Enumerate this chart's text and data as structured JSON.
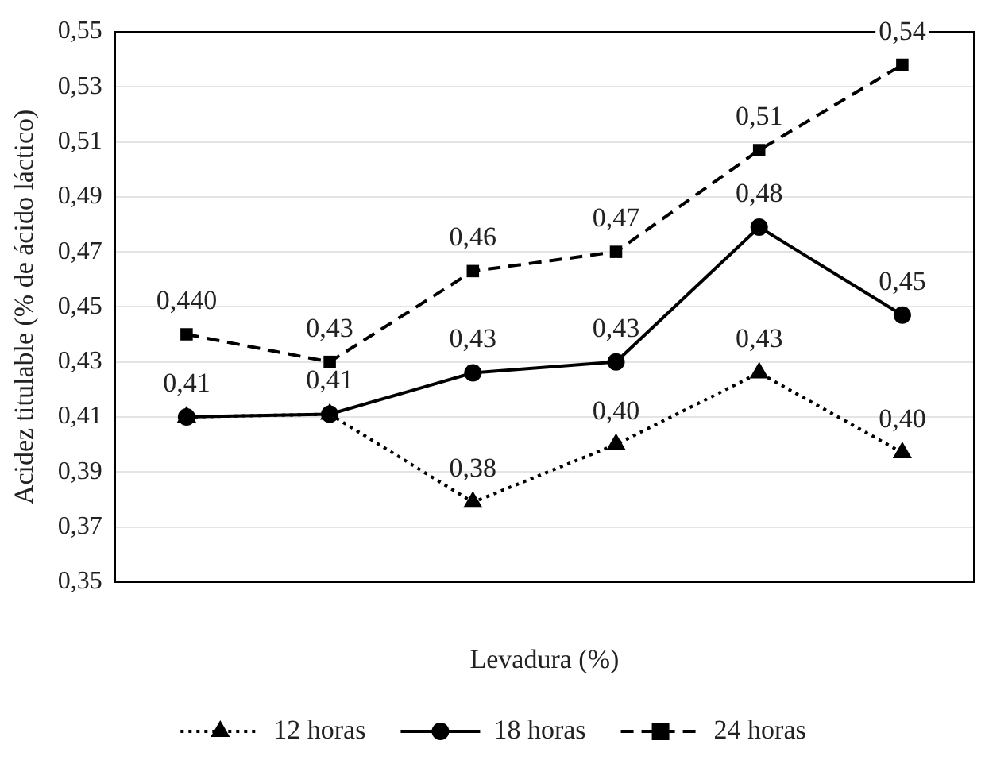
{
  "chart_data": {
    "type": "line",
    "xlabel": "Levadura (%)",
    "ylabel": "Acidez titulable (% de ácido láctico)",
    "categories": [
      null,
      null,
      null,
      null,
      null,
      null
    ],
    "ylim": [
      0.35,
      0.55
    ],
    "yticks": [
      {
        "value": 0.35,
        "label": "0,35"
      },
      {
        "value": 0.37,
        "label": "0,37"
      },
      {
        "value": 0.39,
        "label": "0,39"
      },
      {
        "value": 0.41,
        "label": "0,41"
      },
      {
        "value": 0.43,
        "label": "0,43"
      },
      {
        "value": 0.45,
        "label": "0,45"
      },
      {
        "value": 0.47,
        "label": "0,47"
      },
      {
        "value": 0.49,
        "label": "0,49"
      },
      {
        "value": 0.51,
        "label": "0,51"
      },
      {
        "value": 0.53,
        "label": "0,53"
      },
      {
        "value": 0.55,
        "label": "0,55"
      }
    ],
    "grid": "y",
    "legend": "bottom",
    "series": [
      {
        "name": "12 horas",
        "color": "#000000",
        "marker": "triangle",
        "line_style": "dotted",
        "values": [
          0.41,
          0.411,
          0.379,
          0.4,
          0.426,
          0.397
        ],
        "value_labels": [
          null,
          null,
          "0,38",
          "0,40",
          "0,43",
          "0,40"
        ]
      },
      {
        "name": "18 horas",
        "color": "#000000",
        "marker": "circle",
        "line_style": "solid",
        "values": [
          0.41,
          0.411,
          0.426,
          0.43,
          0.479,
          0.447
        ],
        "value_labels": [
          "0,41",
          "0,41",
          "0,43",
          "0,43",
          "0,48",
          "0,45"
        ]
      },
      {
        "name": "24 horas",
        "color": "#000000",
        "marker": "square",
        "line_style": "dashed",
        "values": [
          0.44,
          0.43,
          0.463,
          0.47,
          0.507,
          0.538
        ],
        "value_labels": [
          "0,440",
          "0,43",
          "0,46",
          "0,47",
          "0,51",
          "0,54"
        ]
      }
    ]
  }
}
